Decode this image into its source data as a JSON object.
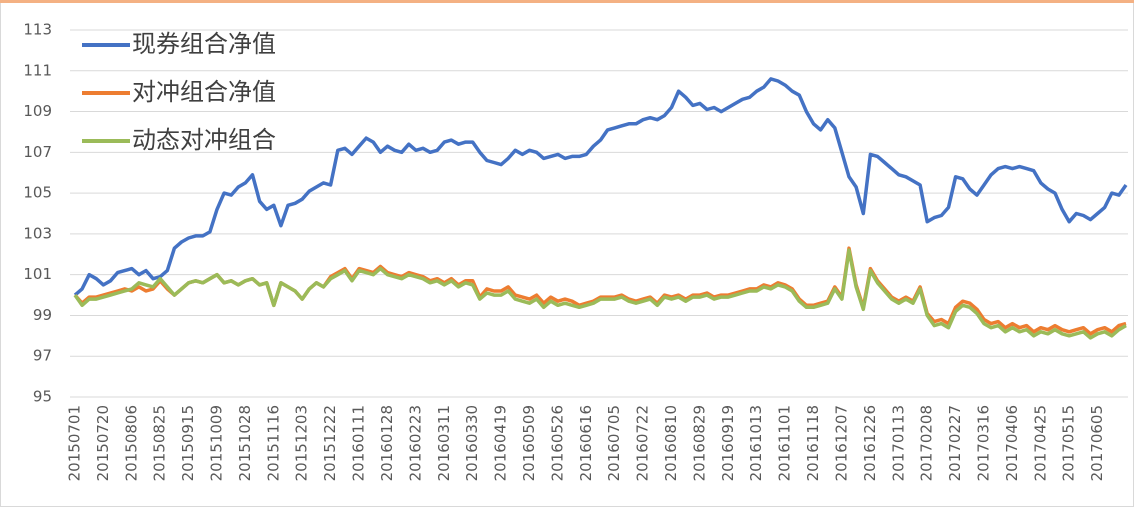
{
  "chart_data": {
    "type": "line",
    "legend": "upper left",
    "grid": true,
    "ylim": [
      95,
      113
    ],
    "yticks": [
      95,
      97,
      99,
      101,
      103,
      105,
      107,
      109,
      111,
      113
    ],
    "categories": [
      "20150701",
      null,
      null,
      null,
      "20150720",
      null,
      null,
      null,
      "20150806",
      null,
      null,
      null,
      "20150825",
      null,
      null,
      null,
      "20150915",
      null,
      null,
      null,
      "20151009",
      null,
      null,
      null,
      "20151028",
      null,
      null,
      null,
      "20151116",
      null,
      null,
      null,
      "20151203",
      null,
      null,
      null,
      "20151222",
      null,
      null,
      null,
      "20160111",
      null,
      null,
      null,
      "20160128",
      null,
      null,
      null,
      "20160223",
      null,
      null,
      null,
      "20160311",
      null,
      null,
      null,
      "20160330",
      null,
      null,
      null,
      "20160419",
      null,
      null,
      null,
      "20160509",
      null,
      null,
      null,
      "20160526",
      null,
      null,
      null,
      "20160616",
      null,
      null,
      null,
      "20160705",
      null,
      null,
      null,
      "20160722",
      null,
      null,
      null,
      "20160810",
      null,
      null,
      null,
      "20160829",
      null,
      null,
      null,
      "20160919",
      null,
      null,
      null,
      "20161013",
      null,
      null,
      null,
      "20161101",
      null,
      null,
      null,
      "20161118",
      null,
      null,
      null,
      "20161207",
      null,
      null,
      null,
      "20161226",
      null,
      null,
      null,
      "20170113",
      null,
      null,
      null,
      "20170208",
      null,
      null,
      null,
      "20170227",
      null,
      null,
      null,
      "20170316",
      null,
      null,
      null,
      "20170406",
      null,
      null,
      null,
      "20170425",
      null,
      null,
      null,
      "20170515",
      null,
      null,
      null,
      "20170605",
      null,
      null,
      null,
      null
    ],
    "series": [
      {
        "name": "现券组合净值",
        "color": "#4472c4",
        "values": [
          100.0,
          100.3,
          101.0,
          100.8,
          100.5,
          100.7,
          101.1,
          101.2,
          101.3,
          101.0,
          101.2,
          100.8,
          100.9,
          101.2,
          102.3,
          102.6,
          102.8,
          102.9,
          102.9,
          103.1,
          104.2,
          105.0,
          104.9,
          105.3,
          105.5,
          105.9,
          104.6,
          104.2,
          104.4,
          103.4,
          104.4,
          104.5,
          104.7,
          105.1,
          105.3,
          105.5,
          105.4,
          107.1,
          107.2,
          106.9,
          107.3,
          107.7,
          107.5,
          107.0,
          107.3,
          107.1,
          107.0,
          107.4,
          107.1,
          107.2,
          107.0,
          107.1,
          107.5,
          107.6,
          107.4,
          107.5,
          107.5,
          107.0,
          106.6,
          106.5,
          106.4,
          106.7,
          107.1,
          106.9,
          107.1,
          107.0,
          106.7,
          106.8,
          106.9,
          106.7,
          106.8,
          106.8,
          106.9,
          107.3,
          107.6,
          108.1,
          108.2,
          108.3,
          108.4,
          108.4,
          108.6,
          108.7,
          108.6,
          108.8,
          109.2,
          110.0,
          109.7,
          109.3,
          109.4,
          109.1,
          109.2,
          109.0,
          109.2,
          109.4,
          109.6,
          109.7,
          110.0,
          110.2,
          110.6,
          110.5,
          110.3,
          110.0,
          109.8,
          109.0,
          108.4,
          108.1,
          108.6,
          108.2,
          107.0,
          105.8,
          105.3,
          104.0,
          106.9,
          106.8,
          106.5,
          106.2,
          105.9,
          105.8,
          105.6,
          105.4,
          103.6,
          103.8,
          103.9,
          104.3,
          105.8,
          105.7,
          105.2,
          104.9,
          105.4,
          105.9,
          106.2,
          106.3,
          106.2,
          106.3,
          106.2,
          106.1,
          105.5,
          105.2,
          105.0,
          104.2,
          103.6,
          104.0,
          103.9,
          103.7,
          104.0,
          104.3,
          105.0,
          104.9,
          105.4
        ]
      },
      {
        "name": "对冲组合净值",
        "color": "#ed7d31",
        "values": [
          100.0,
          99.6,
          99.9,
          99.9,
          100.0,
          100.1,
          100.2,
          100.3,
          100.2,
          100.4,
          100.2,
          100.3,
          100.7,
          100.3,
          100.0,
          100.3,
          100.6,
          100.7,
          100.6,
          100.8,
          101.0,
          100.6,
          100.7,
          100.5,
          100.7,
          100.8,
          100.5,
          100.6,
          99.5,
          100.6,
          100.4,
          100.2,
          99.8,
          100.3,
          100.6,
          100.4,
          100.9,
          101.1,
          101.3,
          100.8,
          101.3,
          101.2,
          101.1,
          101.4,
          101.1,
          101.0,
          100.9,
          101.1,
          101.0,
          100.9,
          100.7,
          100.8,
          100.6,
          100.8,
          100.5,
          100.7,
          100.7,
          99.9,
          100.3,
          100.2,
          100.2,
          100.4,
          100.0,
          99.9,
          99.8,
          100.0,
          99.6,
          99.9,
          99.7,
          99.8,
          99.7,
          99.5,
          99.6,
          99.7,
          99.9,
          99.9,
          99.9,
          100.0,
          99.8,
          99.7,
          99.8,
          99.9,
          99.6,
          100.0,
          99.9,
          100.0,
          99.8,
          100.0,
          100.0,
          100.1,
          99.9,
          100.0,
          100.0,
          100.1,
          100.2,
          100.3,
          100.3,
          100.5,
          100.4,
          100.6,
          100.5,
          100.3,
          99.8,
          99.5,
          99.5,
          99.6,
          99.7,
          100.4,
          99.9,
          102.3,
          100.5,
          99.4,
          101.3,
          100.7,
          100.3,
          99.9,
          99.7,
          99.9,
          99.7,
          100.4,
          99.1,
          98.7,
          98.8,
          98.6,
          99.4,
          99.7,
          99.6,
          99.3,
          98.8,
          98.6,
          98.7,
          98.4,
          98.6,
          98.4,
          98.5,
          98.2,
          98.4,
          98.3,
          98.5,
          98.3,
          98.2,
          98.3,
          98.4,
          98.1,
          98.3,
          98.4,
          98.2,
          98.5,
          98.6
        ]
      },
      {
        "name": "动态对冲组合",
        "color": "#9bbb59",
        "values": [
          100.0,
          99.5,
          99.8,
          99.8,
          99.9,
          100.0,
          100.1,
          100.2,
          100.3,
          100.6,
          100.5,
          100.4,
          100.8,
          100.4,
          100.0,
          100.3,
          100.6,
          100.7,
          100.6,
          100.8,
          101.0,
          100.6,
          100.7,
          100.5,
          100.7,
          100.8,
          100.5,
          100.6,
          99.5,
          100.6,
          100.4,
          100.2,
          99.8,
          100.3,
          100.6,
          100.4,
          100.8,
          101.0,
          101.2,
          100.7,
          101.2,
          101.1,
          101.0,
          101.3,
          101.0,
          100.9,
          100.8,
          101.0,
          100.9,
          100.8,
          100.6,
          100.7,
          100.5,
          100.7,
          100.4,
          100.6,
          100.5,
          99.8,
          100.1,
          100.0,
          100.0,
          100.2,
          99.8,
          99.7,
          99.6,
          99.8,
          99.4,
          99.7,
          99.5,
          99.6,
          99.5,
          99.4,
          99.5,
          99.6,
          99.8,
          99.8,
          99.8,
          99.9,
          99.7,
          99.6,
          99.7,
          99.8,
          99.5,
          99.9,
          99.8,
          99.9,
          99.7,
          99.9,
          99.9,
          100.0,
          99.8,
          99.9,
          99.9,
          100.0,
          100.1,
          100.2,
          100.2,
          100.4,
          100.3,
          100.5,
          100.4,
          100.2,
          99.7,
          99.4,
          99.4,
          99.5,
          99.6,
          100.3,
          99.8,
          102.2,
          100.4,
          99.3,
          101.2,
          100.6,
          100.2,
          99.8,
          99.6,
          99.8,
          99.6,
          100.3,
          99.0,
          98.5,
          98.6,
          98.4,
          99.2,
          99.5,
          99.4,
          99.1,
          98.6,
          98.4,
          98.5,
          98.2,
          98.4,
          98.2,
          98.3,
          98.0,
          98.2,
          98.1,
          98.3,
          98.1,
          98.0,
          98.1,
          98.2,
          97.9,
          98.1,
          98.2,
          98.0,
          98.3,
          98.5
        ]
      }
    ]
  }
}
